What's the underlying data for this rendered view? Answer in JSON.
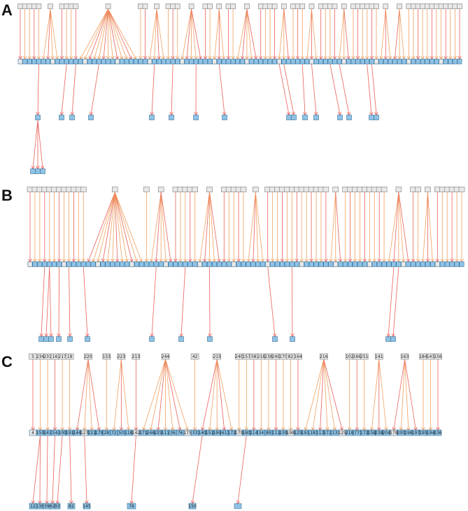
{
  "colors": {
    "top_node_fill": "#e8e8e8",
    "top_node_stroke": "#7a7a7a",
    "mid_node_fill": "#8ec3e6",
    "mid_node_stroke": "#3a6f95",
    "leaf_node_fill": "#8ec3e6",
    "leaf_node_stroke": "#3a6f95",
    "edge_orange": "#f0a060",
    "edge_red": "#e8605a"
  },
  "panels": [
    {
      "letter": "A",
      "top_labels": [],
      "mid_labels": [],
      "leaf_labels": []
    },
    {
      "letter": "B",
      "top_labels": [],
      "mid_labels": [],
      "leaf_labels": []
    },
    {
      "letter": "C",
      "top_labels": [
        "5",
        "234",
        "231",
        "16",
        "217",
        "19",
        "220",
        "153",
        "223",
        "213",
        "244",
        "42",
        "215",
        "240",
        "157",
        "58",
        "218",
        "238",
        "249",
        "170",
        "82",
        "164",
        "216",
        "102",
        "166",
        "251",
        "141",
        "163",
        "184",
        "143",
        "156",
        "57",
        "65",
        "188",
        "178",
        "13",
        "189",
        "190",
        "228",
        "192",
        "247"
      ],
      "mid_labels": [
        "4",
        "155",
        "141",
        "54",
        "100",
        "191",
        "144",
        "127",
        "221",
        "179",
        "28",
        "72",
        "50",
        "118",
        "142",
        "171",
        "246",
        "225",
        "111",
        "36",
        "76",
        "175",
        "33",
        "140",
        "151",
        "199",
        "61",
        "172",
        "179",
        "180",
        "114",
        "34",
        "89",
        "111",
        "139",
        "198",
        "125",
        "191",
        "18",
        "113",
        "171",
        "13",
        "125",
        "218",
        "77",
        "172",
        "158",
        "238",
        "204",
        "178",
        "200",
        "196",
        "197",
        "195",
        "194",
        "236"
      ],
      "leaf_labels": [
        "12",
        "138",
        "39",
        "62",
        "93",
        "82",
        "145",
        "76",
        "150"
      ]
    }
  ]
}
